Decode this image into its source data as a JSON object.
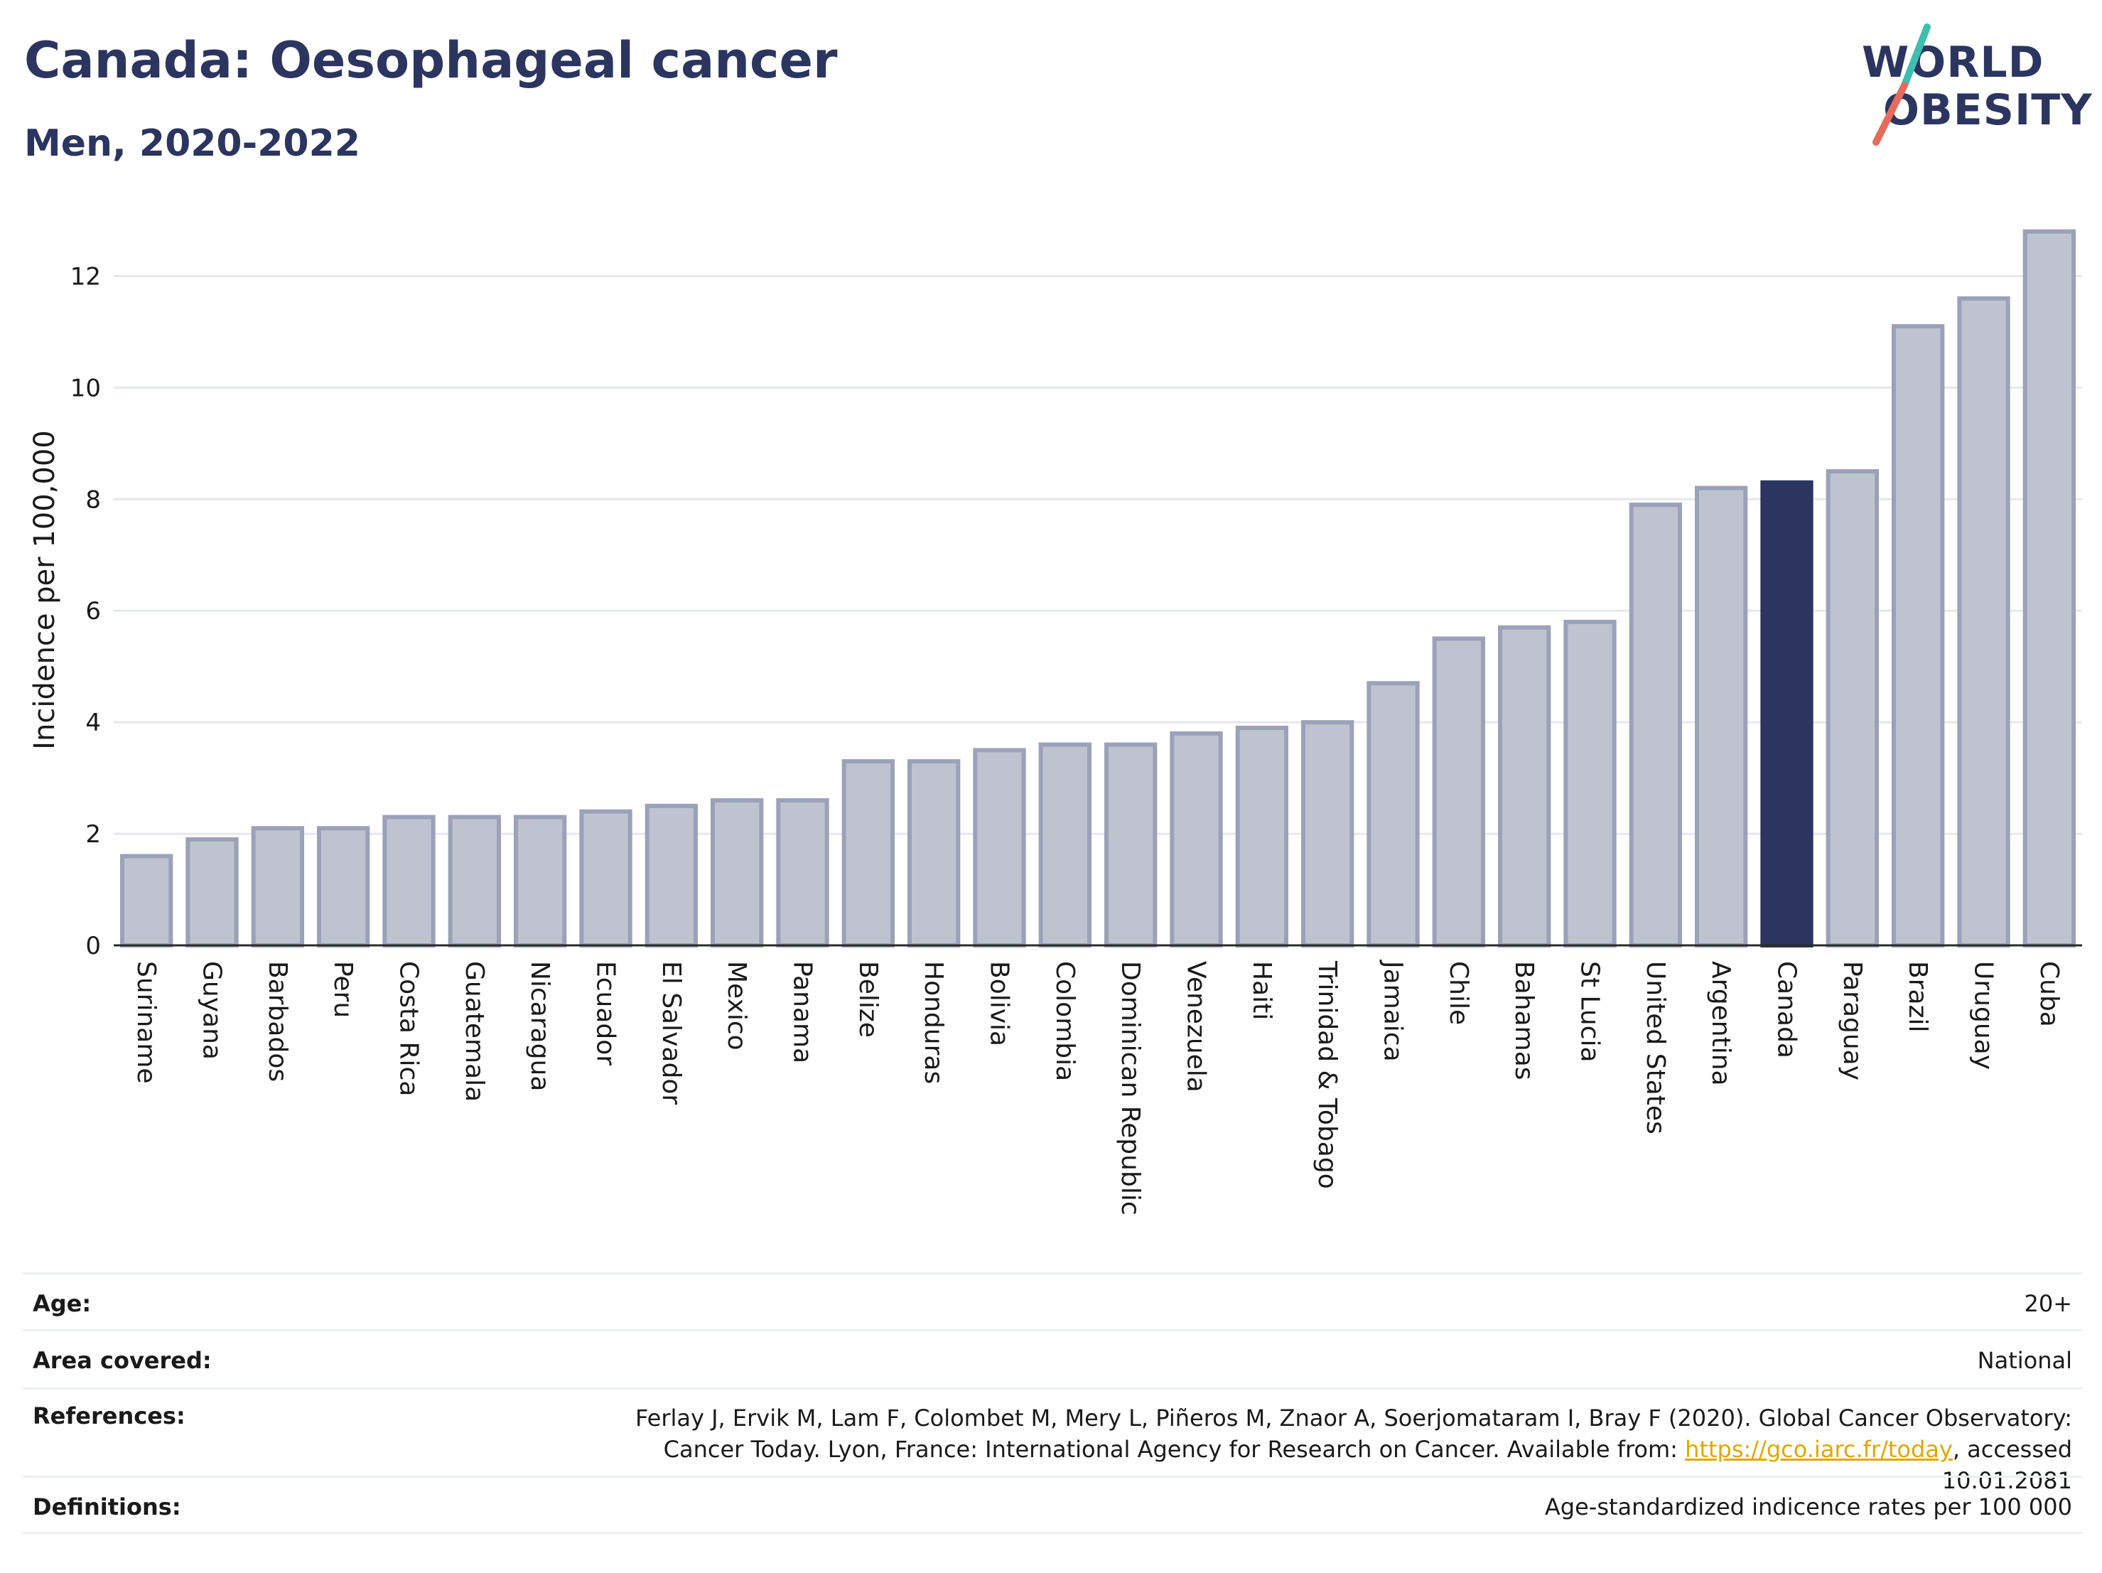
{
  "title": "Canada: Oesophageal cancer",
  "subtitle": "Men, 2020-2022",
  "logo": {
    "line1": "WORLD",
    "line2": "OBESITY",
    "slash_colors": [
      "#3cbfb0",
      "#e76b5a"
    ]
  },
  "colors": {
    "highlight": "#2b3560",
    "bar": "#bfc3d0",
    "bar_outline": "#9ba1b8",
    "grid": "#e6e8ee"
  },
  "chart_data": {
    "type": "bar",
    "ylabel": "Incidence per 100,000",
    "xlabel": "",
    "ylim": [
      0,
      13
    ],
    "yticks": [
      0,
      2,
      4,
      6,
      8,
      10,
      12
    ],
    "grid": true,
    "highlight": "Canada",
    "categories": [
      "Suriname",
      "Guyana",
      "Barbados",
      "Peru",
      "Costa Rica",
      "Guatemala",
      "Nicaragua",
      "Ecuador",
      "El Salvador",
      "Mexico",
      "Panama",
      "Belize",
      "Honduras",
      "Bolivia",
      "Colombia",
      "Dominican Republic",
      "Venezuela",
      "Haiti",
      "Trinidad & Tobago",
      "Jamaica",
      "Chile",
      "Bahamas",
      "St Lucia",
      "United States",
      "Argentina",
      "Canada",
      "Paraguay",
      "Brazil",
      "Uruguay",
      "Cuba"
    ],
    "values": [
      1.6,
      1.9,
      2.1,
      2.1,
      2.3,
      2.3,
      2.3,
      2.4,
      2.5,
      2.6,
      2.6,
      3.3,
      3.3,
      3.5,
      3.6,
      3.6,
      3.8,
      3.9,
      4.0,
      4.7,
      5.5,
      5.7,
      5.8,
      7.9,
      8.2,
      8.3,
      8.5,
      11.1,
      11.6,
      12.8
    ]
  },
  "info": {
    "age_label": "Age:",
    "age_value": "20+",
    "area_label": "Area covered:",
    "area_value": "National",
    "references_label": "References:",
    "references_text_1": "Ferlay J, Ervik M, Lam F, Colombet M, Mery L, Piñeros M, Znaor A, Soerjomataram I, Bray F (2020). Global Cancer Observatory: Cancer Today. Lyon, France: International Agency for Research on Cancer. Available from: ",
    "references_link": "https://gco.iarc.fr/today",
    "references_text_2": ", accessed 10.01.2081",
    "definitions_label": "Definitions:",
    "definitions_value": "Age-standardized indicence rates per 100 000"
  }
}
